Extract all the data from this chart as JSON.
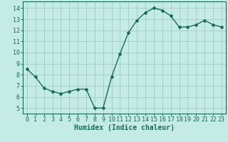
{
  "x": [
    0,
    1,
    2,
    3,
    4,
    5,
    6,
    7,
    8,
    9,
    10,
    11,
    12,
    13,
    14,
    15,
    16,
    17,
    18,
    19,
    20,
    21,
    22,
    23
  ],
  "y": [
    8.5,
    7.8,
    6.8,
    6.5,
    6.3,
    6.5,
    6.7,
    6.7,
    5.0,
    5.0,
    7.8,
    9.9,
    11.8,
    12.9,
    13.6,
    14.0,
    13.8,
    13.3,
    12.3,
    12.3,
    12.5,
    12.9,
    12.5,
    12.3
  ],
  "line_color": "#1a6b5a",
  "bg_color": "#c5ebe6",
  "grid_color": "#9dceca",
  "xlabel": "Humidex (Indice chaleur)",
  "ylim": [
    4.5,
    14.6
  ],
  "xlim": [
    -0.5,
    23.5
  ],
  "yticks": [
    5,
    6,
    7,
    8,
    9,
    10,
    11,
    12,
    13,
    14
  ],
  "xticks": [
    0,
    1,
    2,
    3,
    4,
    5,
    6,
    7,
    8,
    9,
    10,
    11,
    12,
    13,
    14,
    15,
    16,
    17,
    18,
    19,
    20,
    21,
    22,
    23
  ],
  "xlabel_fontsize": 7,
  "tick_fontsize": 6,
  "marker": "D",
  "marker_size": 2.0,
  "line_width": 1.0
}
